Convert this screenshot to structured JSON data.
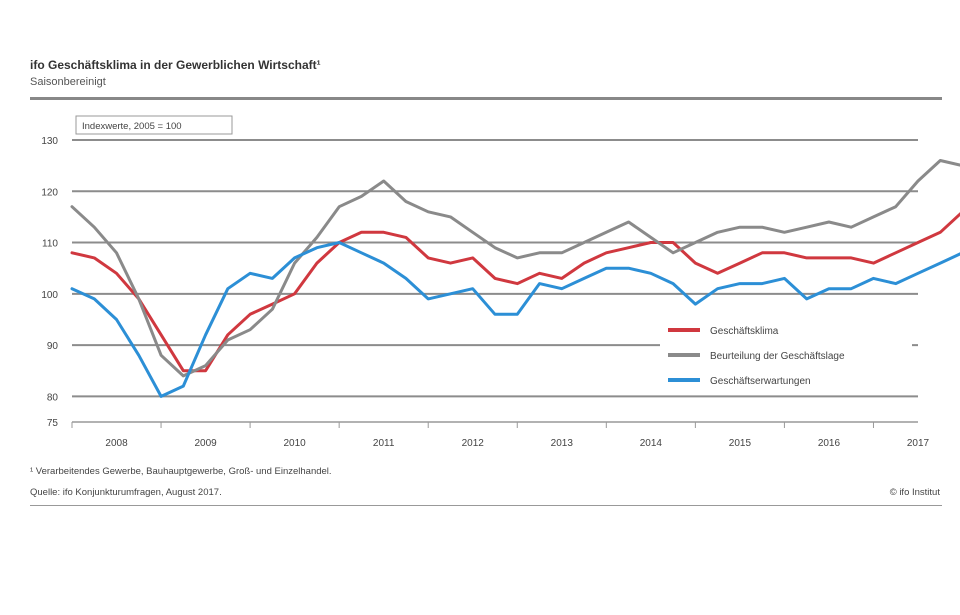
{
  "chart_data": {
    "type": "line",
    "title": "ifo Geschäftsklima in der Gewerblichen Wirtschaft¹",
    "subtitle": "Saisonbereinigt",
    "unit_label": "Indexwerte, 2005 = 100",
    "footnote": "¹ Verarbeitendes Gewerbe, Bauhauptgewerbe, Groß- und Einzelhandel.",
    "source": "Quelle: ifo Konjunkturumfragen, August 2017.",
    "credit": "© ifo Institut",
    "x_start": 2008.0,
    "x_step": 0.25,
    "xlim": [
      2008.0,
      2017.5
    ],
    "ylim": [
      75,
      130
    ],
    "yticks": [
      75,
      80,
      90,
      100,
      110,
      120,
      130
    ],
    "xticks": [
      "2008",
      "2009",
      "2010",
      "2011",
      "2012",
      "2013",
      "2014",
      "2015",
      "2016",
      "2017"
    ],
    "legend_position": "right",
    "series": [
      {
        "name": "Geschäftsklima",
        "color": "#d0383f",
        "values": [
          108,
          107,
          104,
          99,
          92,
          85,
          85,
          92,
          96,
          98,
          100,
          106,
          110,
          112,
          112,
          111,
          107,
          106,
          107,
          103,
          102,
          104,
          103,
          106,
          108,
          109,
          110,
          110,
          106,
          104,
          106,
          108,
          108,
          107,
          107,
          107,
          106,
          108,
          110,
          112,
          116
        ]
      },
      {
        "name": "Beurteilung der Geschäftslage",
        "color": "#8a8a8a",
        "values": [
          117,
          113,
          108,
          99,
          88,
          84,
          86,
          91,
          93,
          97,
          106,
          111,
          117,
          119,
          122,
          118,
          116,
          115,
          112,
          109,
          107,
          108,
          108,
          110,
          112,
          114,
          111,
          108,
          110,
          112,
          113,
          113,
          112,
          113,
          114,
          113,
          115,
          117,
          122,
          126,
          125
        ]
      },
      {
        "name": "Geschäftserwartungen",
        "color": "#2c8fd6",
        "values": [
          101,
          99,
          95,
          88,
          80,
          82,
          92,
          101,
          104,
          103,
          107,
          109,
          110,
          108,
          106,
          103,
          99,
          100,
          101,
          96,
          96,
          102,
          101,
          103,
          105,
          105,
          104,
          102,
          98,
          101,
          102,
          102,
          103,
          99,
          101,
          101,
          103,
          102,
          104,
          106,
          108
        ]
      }
    ]
  }
}
